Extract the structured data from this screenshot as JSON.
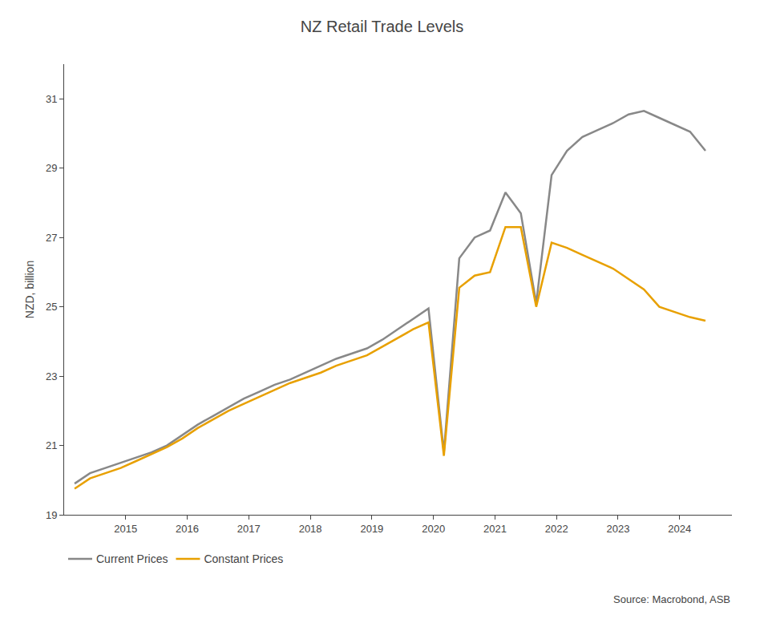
{
  "chart_data": {
    "type": "line",
    "title": "NZ Retail Trade Levels",
    "ylabel": "NZD, billion",
    "x": [
      2014.17,
      2014.42,
      2014.67,
      2014.92,
      2015.17,
      2015.42,
      2015.67,
      2015.92,
      2016.17,
      2016.42,
      2016.67,
      2016.92,
      2017.17,
      2017.42,
      2017.67,
      2017.92,
      2018.17,
      2018.42,
      2018.67,
      2018.92,
      2019.17,
      2019.42,
      2019.67,
      2019.92,
      2020.17,
      2020.42,
      2020.67,
      2020.92,
      2021.17,
      2021.42,
      2021.67,
      2021.92,
      2022.17,
      2022.42,
      2022.67,
      2022.92,
      2023.17,
      2023.42,
      2023.67,
      2023.92,
      2024.17,
      2024.42
    ],
    "series": [
      {
        "name": "Current Prices",
        "color": "#888888",
        "values": [
          19.9,
          20.2,
          20.35,
          20.5,
          20.65,
          20.8,
          21.0,
          21.3,
          21.6,
          21.85,
          22.1,
          22.35,
          22.55,
          22.75,
          22.9,
          23.1,
          23.3,
          23.5,
          23.65,
          23.8,
          24.05,
          24.35,
          24.65,
          24.95,
          20.8,
          26.4,
          27.0,
          27.2,
          28.3,
          27.7,
          25.1,
          28.8,
          29.5,
          29.9,
          30.1,
          30.3,
          30.55,
          30.65,
          30.45,
          30.25,
          30.05,
          29.5
        ]
      },
      {
        "name": "Constant Prices",
        "color": "#E8A000",
        "values": [
          19.75,
          20.05,
          20.2,
          20.35,
          20.55,
          20.75,
          20.95,
          21.2,
          21.5,
          21.75,
          22.0,
          22.2,
          22.4,
          22.6,
          22.8,
          22.95,
          23.1,
          23.3,
          23.45,
          23.6,
          23.85,
          24.1,
          24.35,
          24.55,
          20.7,
          25.55,
          25.9,
          26.0,
          27.3,
          27.3,
          25.0,
          26.85,
          26.7,
          26.5,
          26.3,
          26.1,
          25.8,
          25.5,
          25.0,
          24.85,
          24.7,
          24.6
        ]
      }
    ],
    "xlim": [
      2014.0,
      2024.85
    ],
    "xticks": [
      2015,
      2016,
      2017,
      2018,
      2019,
      2020,
      2021,
      2022,
      2023,
      2024
    ],
    "ylim": [
      19,
      32
    ],
    "yticks": [
      19,
      21,
      23,
      25,
      27,
      29,
      31
    ],
    "grid": false,
    "legend": "bottom",
    "annotations": [
      "Source: Macrobond, ASB"
    ]
  }
}
